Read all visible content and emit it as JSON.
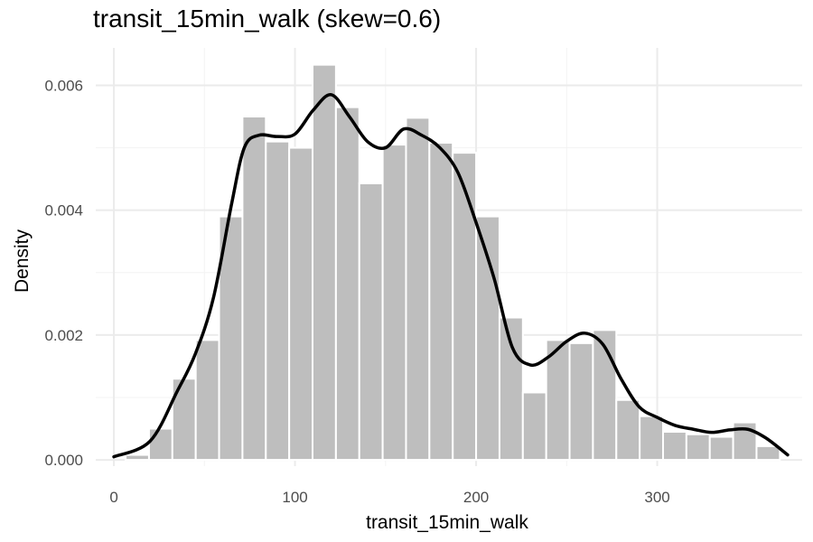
{
  "chart_data": {
    "type": "bar",
    "title": "transit_15min_walk (skew=0.6)",
    "xlabel": "transit_15min_walk",
    "ylabel": "Density",
    "xlim": [
      -10,
      380
    ],
    "ylim": [
      -0.0001,
      0.0066
    ],
    "x_ticks": [
      0,
      100,
      200,
      300
    ],
    "x_tick_labels": [
      "0",
      "100",
      "200",
      "300"
    ],
    "y_ticks": [
      0.0,
      0.002,
      0.004,
      0.006
    ],
    "y_tick_labels": [
      "0.000",
      "0.002",
      "0.004",
      "0.006"
    ],
    "grid": true,
    "bin_width": 12.9,
    "histogram": {
      "bin_starts": [
        6.5,
        19.4,
        32.3,
        45.2,
        58.1,
        71.0,
        83.9,
        96.8,
        109.7,
        122.6,
        135.5,
        148.4,
        161.3,
        174.2,
        187.1,
        200.0,
        212.9,
        225.8,
        238.7,
        251.6,
        264.5,
        277.4,
        290.3,
        303.2,
        316.1,
        329.0,
        341.9,
        354.8
      ],
      "density": [
        8e-05,
        0.0005,
        0.0013,
        0.00192,
        0.0039,
        0.0055,
        0.0051,
        0.005,
        0.00633,
        0.00565,
        0.00443,
        0.00505,
        0.00548,
        0.00508,
        0.00492,
        0.0039,
        0.00228,
        0.00108,
        0.00192,
        0.00187,
        0.00208,
        0.00096,
        0.0007,
        0.00045,
        0.00041,
        0.00037,
        0.0006,
        0.00022
      ],
      "color": "#bebebe"
    },
    "density_curve": {
      "x": [
        0,
        20,
        35,
        45,
        55,
        65,
        72,
        80,
        90,
        100,
        110,
        120,
        130,
        140,
        150,
        160,
        170,
        180,
        190,
        200,
        210,
        220,
        230,
        240,
        250,
        260,
        270,
        280,
        290,
        300,
        310,
        320,
        330,
        340,
        350,
        360,
        372
      ],
      "y": [
        5e-05,
        0.0003,
        0.0011,
        0.0017,
        0.0026,
        0.0041,
        0.005,
        0.0052,
        0.00518,
        0.00522,
        0.0056,
        0.00585,
        0.0055,
        0.0051,
        0.005,
        0.0053,
        0.0052,
        0.005,
        0.0046,
        0.0038,
        0.0029,
        0.0018,
        0.00152,
        0.00165,
        0.0019,
        0.00203,
        0.00185,
        0.0013,
        0.00085,
        0.00068,
        0.00055,
        0.00049,
        0.00044,
        0.00048,
        0.00049,
        0.00035,
        8e-05
      ],
      "color": "#000000"
    }
  }
}
